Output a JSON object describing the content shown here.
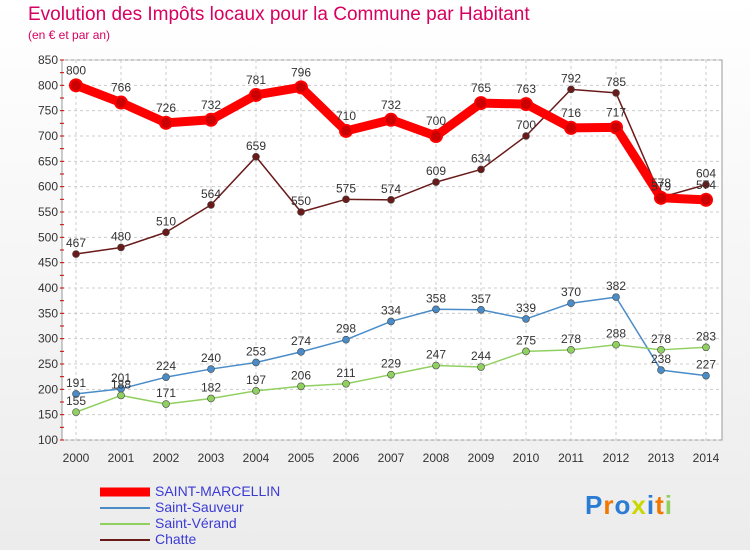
{
  "chart_data": {
    "type": "line",
    "title": "Evolution des Impôts locaux pour la Commune par Habitant",
    "subtitle": "(en € et par an)",
    "xlabel": "",
    "ylabel": "",
    "ylim": [
      100,
      850
    ],
    "yticks": [
      100,
      150,
      200,
      250,
      300,
      350,
      400,
      450,
      500,
      550,
      600,
      650,
      700,
      750,
      800,
      850
    ],
    "x": [
      "2000",
      "2001",
      "2002",
      "2003",
      "2004",
      "2005",
      "2006",
      "2007",
      "2008",
      "2009",
      "2010",
      "2011",
      "2012",
      "2013",
      "2014"
    ],
    "series": [
      {
        "name": "SAINT-MARCELLIN",
        "color": "#ff0000",
        "values": [
          800,
          766,
          726,
          732,
          781,
          796,
          710,
          732,
          700,
          765,
          763,
          716,
          717,
          578,
          574
        ]
      },
      {
        "name": "Saint-Sauveur",
        "color": "#4a8cc8",
        "values": [
          191,
          201,
          224,
          240,
          253,
          274,
          298,
          334,
          358,
          357,
          339,
          370,
          382,
          238,
          227
        ]
      },
      {
        "name": "Saint-Vérand",
        "color": "#90d060",
        "values": [
          155,
          188,
          171,
          182,
          197,
          206,
          211,
          229,
          247,
          244,
          275,
          278,
          288,
          278,
          283
        ]
      },
      {
        "name": "Chatte",
        "color": "#6b1a1a",
        "values": [
          467,
          480,
          510,
          564,
          659,
          550,
          575,
          574,
          609,
          634,
          700,
          792,
          785,
          579,
          604
        ]
      }
    ]
  },
  "logo": {
    "text": "Proxiti",
    "colors": [
      "#2b7cd3",
      "#f07800",
      "#2b7cd3",
      "#c8d800",
      "#2b7cd3",
      "#f07800",
      "#90d060"
    ]
  }
}
